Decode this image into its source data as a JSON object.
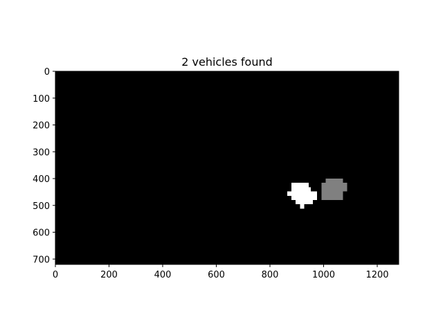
{
  "chart_data": {
    "type": "heatmap",
    "title": "2 vehicles found",
    "xlabel": "",
    "ylabel": "",
    "xlim": [
      0,
      1280
    ],
    "ylim": [
      720,
      0
    ],
    "grid": false,
    "legend": "none",
    "x_ticks": [
      0,
      200,
      400,
      600,
      800,
      1000,
      1200
    ],
    "y_ticks": [
      0,
      100,
      200,
      300,
      400,
      500,
      600,
      700
    ],
    "colors": {
      "background": "#000000",
      "vehicle_1": "#ffffff",
      "vehicle_2": "#808080"
    },
    "regions": [
      {
        "label": 1,
        "rects": [
          {
            "x": [
              880,
              944
            ],
            "y": [
              416,
              432
            ]
          },
          {
            "x": [
              880,
              952
            ],
            "y": [
              432,
              448
            ]
          },
          {
            "x": [
              864,
              976
            ],
            "y": [
              448,
              464
            ]
          },
          {
            "x": [
              880,
              976
            ],
            "y": [
              464,
              480
            ]
          },
          {
            "x": [
              896,
              960
            ],
            "y": [
              480,
              496
            ]
          },
          {
            "x": [
              912,
              928
            ],
            "y": [
              496,
              512
            ]
          }
        ]
      },
      {
        "label": 2,
        "rects": [
          {
            "x": [
              1008,
              1072
            ],
            "y": [
              400,
              416
            ]
          },
          {
            "x": [
              992,
              1088
            ],
            "y": [
              416,
              448
            ]
          },
          {
            "x": [
              992,
              1072
            ],
            "y": [
              448,
              480
            ]
          }
        ]
      }
    ]
  }
}
